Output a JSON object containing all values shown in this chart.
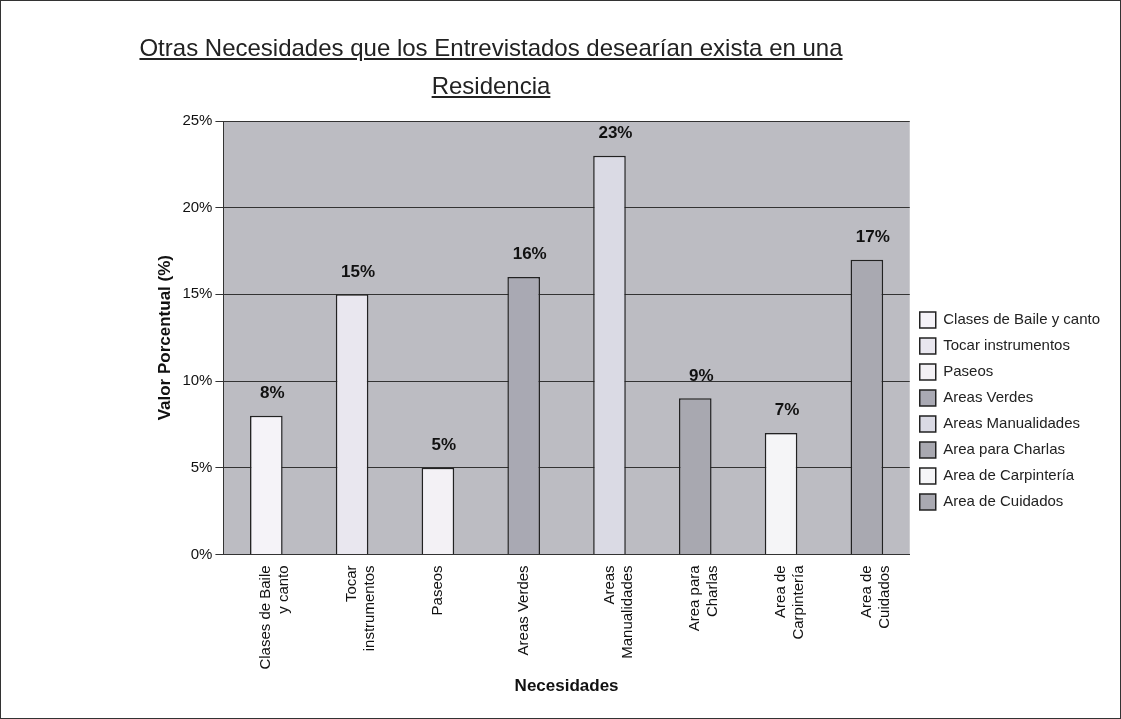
{
  "chart_data": {
    "type": "bar",
    "title": "Otras Necesidades que los Entrevistados desearían exista en una Residencia",
    "xlabel": "Necesidades",
    "ylabel": "Valor Porcentual (%)",
    "categories": [
      "Clases de Baile y canto",
      "Tocar instrumentos",
      "Paseos",
      "Areas Verdes",
      "Areas Manualidades",
      "Area para Charlas",
      "Area de Carpintería",
      "Area de Cuidados"
    ],
    "series": [
      {
        "name": "Clases de Baile y canto",
        "color": "#f5f3f8",
        "values": [
          8,
          null,
          null,
          null,
          null,
          null,
          null,
          null
        ],
        "value_labels": [
          "8%",
          null,
          null,
          null,
          null,
          null,
          null,
          null
        ]
      },
      {
        "name": "Tocar instrumentos",
        "color": "#e9e7ef",
        "values": [
          null,
          15,
          null,
          null,
          null,
          null,
          null,
          null
        ],
        "value_labels": [
          null,
          "15%",
          null,
          null,
          null,
          null,
          null,
          null
        ]
      },
      {
        "name": "Paseos",
        "color": "#f3f1f5",
        "values": [
          null,
          null,
          5,
          null,
          null,
          null,
          null,
          null
        ],
        "value_labels": [
          null,
          null,
          "5%",
          null,
          null,
          null,
          null,
          null
        ]
      },
      {
        "name": "Areas Verdes",
        "color": "#a9a9b3",
        "values": [
          null,
          null,
          null,
          16,
          null,
          null,
          null,
          null
        ],
        "value_labels": [
          null,
          null,
          null,
          "16%",
          null,
          null,
          null,
          null
        ]
      },
      {
        "name": "Areas Manualidades",
        "color": "#dadae4",
        "values": [
          null,
          null,
          null,
          null,
          23,
          null,
          null,
          null
        ],
        "value_labels": [
          null,
          null,
          null,
          null,
          "23%",
          null,
          null,
          null
        ]
      },
      {
        "name": "Area para Charlas",
        "color": "#a8a8b0",
        "values": [
          null,
          null,
          null,
          null,
          null,
          9,
          null,
          null
        ],
        "value_labels": [
          null,
          null,
          null,
          null,
          null,
          "9%",
          null,
          null
        ]
      },
      {
        "name": "Area de Carpintería",
        "color": "#f5f5f7",
        "values": [
          null,
          null,
          null,
          null,
          null,
          null,
          7,
          null
        ],
        "value_labels": [
          null,
          null,
          null,
          null,
          null,
          null,
          "7%",
          null
        ]
      },
      {
        "name": "Area de Cuidados",
        "color": "#a9a9b1",
        "values": [
          null,
          null,
          null,
          null,
          null,
          null,
          null,
          17
        ],
        "value_labels": [
          null,
          null,
          null,
          null,
          null,
          null,
          null,
          "17%"
        ]
      }
    ],
    "ylim": [
      0,
      25
    ],
    "yticks": [
      {
        "value": 0,
        "label": "0%"
      },
      {
        "value": 5,
        "label": "5%"
      },
      {
        "value": 10,
        "label": "10%"
      },
      {
        "value": 15,
        "label": "15%"
      },
      {
        "value": 20,
        "label": "20%"
      },
      {
        "value": 25,
        "label": "25%"
      }
    ],
    "grid": "y",
    "legend": "right"
  }
}
